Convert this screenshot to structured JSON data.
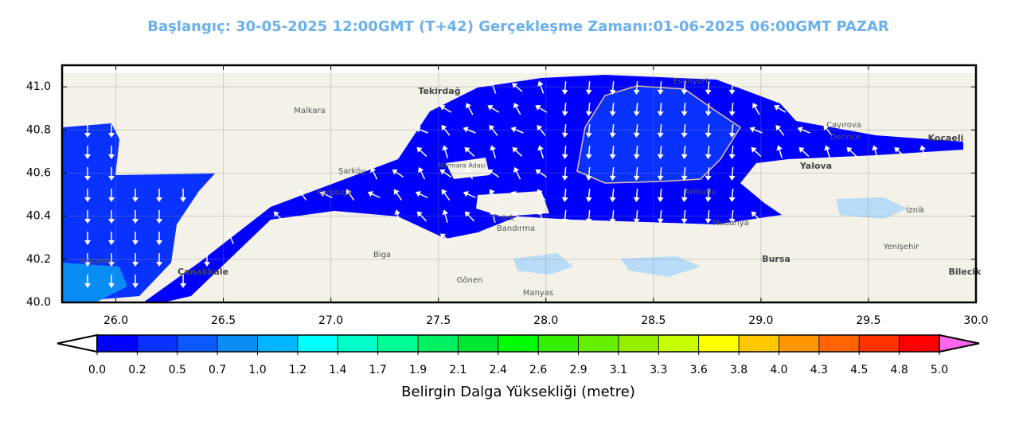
{
  "map": {
    "title": "Başlangıç: 30-05-2025 12:00GMT (T+42)  Gerçekleşme Zamanı:01-06-2025 06:00GMT PAZAR",
    "xlim": [
      25.75,
      30.0
    ],
    "ylim": [
      40.0,
      41.1
    ],
    "xticks": [
      {
        "value": 26,
        "label": "26.0"
      },
      26.5,
      {
        "value": 27,
        "label": "27.0"
      },
      27.5,
      {
        "value": 28,
        "label": "28.0"
      },
      28.5,
      {
        "value": 29,
        "label": "29.0"
      },
      29.5,
      {
        "value": 30,
        "label": "30.0"
      }
    ],
    "yticks": [
      {
        "value": 40,
        "label": "40.0"
      },
      40.2,
      40.4,
      40.6,
      40.8,
      {
        "value": 41,
        "label": "41.0"
      }
    ],
    "places": [
      "Tekirdağ",
      "Marmara Adası",
      "Yalova",
      "Kocaeli",
      "Bursa",
      "Çanakkale",
      "Bandırma",
      "Gökçeada",
      "Esenyurt",
      "Armutlu",
      "Biga",
      "Gönen",
      "Manyas",
      "Karabiga",
      "Mudanya",
      "Malkara",
      "Şarköy",
      "Erdek",
      "İznik",
      "Yenişehir",
      "Bilecik",
      "Çayırova",
      "Derince"
    ],
    "colorbar": {
      "label": "Belirgin Dalga Yüksekliği (metre)",
      "under_color": "#ffffff",
      "over_color": "#ff66ee",
      "colors": [
        "#0000ff",
        "#0a32ff",
        "#0a5aff",
        "#0a8cf5",
        "#00b4ff",
        "#00ffff",
        "#00ffc8",
        "#00ff96",
        "#00f064",
        "#00e632",
        "#00ff00",
        "#32f000",
        "#64f000",
        "#96f000",
        "#c8ff00",
        "#ffff00",
        "#ffc800",
        "#ff9600",
        "#ff6400",
        "#ff3200",
        "#ff0000"
      ],
      "ticks": [
        {
          "value": 0,
          "label": "0.0"
        },
        0.2,
        0.5,
        0.7,
        {
          "value": 1,
          "label": "1.0"
        },
        1.2,
        1.4,
        1.7,
        1.9,
        2.1,
        2.4,
        2.6,
        2.9,
        3.1,
        3.3,
        3.6,
        3.8,
        {
          "value": 4,
          "label": "4.0"
        },
        4.3,
        4.5,
        4.8,
        {
          "value": 5,
          "label": "5.0"
        }
      ]
    }
  }
}
